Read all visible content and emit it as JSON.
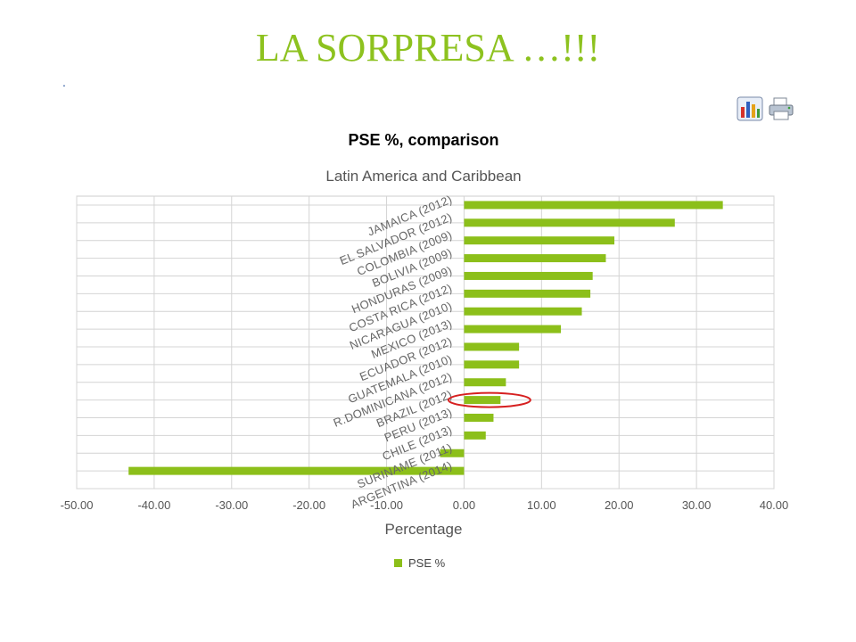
{
  "slide": {
    "title": "LA SORPRESA …!!!",
    "marker": "."
  },
  "toolbar": {
    "chart_icon": "bar-chart-icon",
    "print_icon": "printer-icon"
  },
  "colors": {
    "title": "#8dc21f",
    "bar": "#8cbf1a",
    "highlight": "#d62020"
  },
  "chart_data": {
    "type": "bar",
    "orientation": "horizontal",
    "title": "PSE %, comparison",
    "subtitle": "Latin America and Caribbean",
    "xlabel": "Percentage",
    "ylabel": "",
    "xlim": [
      -50,
      40
    ],
    "xticks": [
      "-50.00",
      "-40.00",
      "-30.00",
      "-20.00",
      "-10.00",
      "0.00",
      "10.00",
      "20.00",
      "30.00",
      "40.00"
    ],
    "grid": true,
    "legend_position": "bottom",
    "highlighted_category": "BRAZIL (2012)",
    "categories": [
      "JAMAICA (2012)",
      "EL SALVADOR (2012)",
      "COLOMBIA (2009)",
      "BOLIVIA (2009)",
      "HONDURAS (2009)",
      "COSTA RICA (2012)",
      "NICARAGUA (2010)",
      "MEXICO (2013)",
      "ECUADOR (2012)",
      "GUATEMALA (2010)",
      "R.DOMINICANA (2012)",
      "BRAZIL (2012)",
      "PERU (2013)",
      "CHILE (2013)",
      "SURINAME (2011)",
      "ARGENTINA (2014)"
    ],
    "series": [
      {
        "name": "PSE %",
        "values": [
          33.4,
          27.2,
          19.4,
          18.3,
          16.6,
          16.3,
          15.2,
          12.5,
          7.1,
          7.1,
          5.4,
          4.7,
          3.8,
          2.8,
          -3.1,
          -43.3
        ]
      }
    ]
  }
}
